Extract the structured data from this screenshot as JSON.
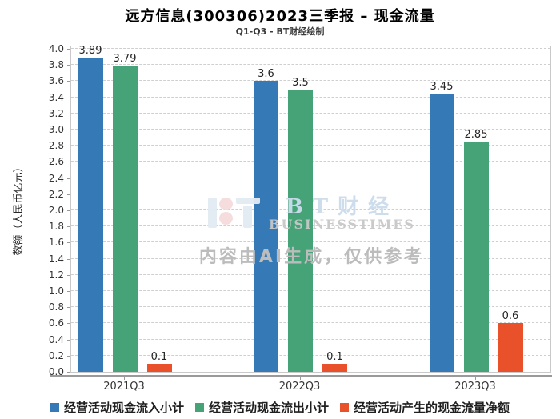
{
  "title": "远方信息(300306)2023三季报 – 现金流量",
  "subtitle": "Q1-Q3 - BT财经绘制",
  "watermark": {
    "brand_cn": "BT财经",
    "brand_en": "BUSINESSTIMES",
    "ai_note": "内容由AI生成，仅供参考"
  },
  "colors": {
    "inflow_blue": "#357ab7",
    "outflow_green": "#45a377",
    "net_orange": "#e8512a",
    "grid": "#cfcfcf",
    "watermark_blue": "#ccdcec",
    "watermark_gray": "#c8c8c8"
  },
  "chart_data": {
    "type": "bar",
    "title": "远方信息(300306)2023三季报 – 现金流量",
    "subtitle": "Q1-Q3 - BT财经绘制",
    "categories": [
      "2021Q3",
      "2022Q3",
      "2023Q3"
    ],
    "series": [
      {
        "name": "经营活动现金流入小计",
        "color": "#357ab7",
        "values": [
          3.89,
          3.6,
          3.45
        ]
      },
      {
        "name": "经营活动现金流出小计",
        "color": "#45a377",
        "values": [
          3.79,
          3.5,
          2.85
        ]
      },
      {
        "name": "经营活动产生的现金流量净额",
        "color": "#e8512a",
        "values": [
          0.1,
          0.1,
          0.6
        ]
      }
    ],
    "xlabel": "",
    "ylabel": "数额（人民币亿元）",
    "ylim": [
      0.0,
      4.0
    ],
    "ytick_step": 0.2,
    "grid": true,
    "grid_style": "dashed",
    "legend_position": "bottom"
  }
}
